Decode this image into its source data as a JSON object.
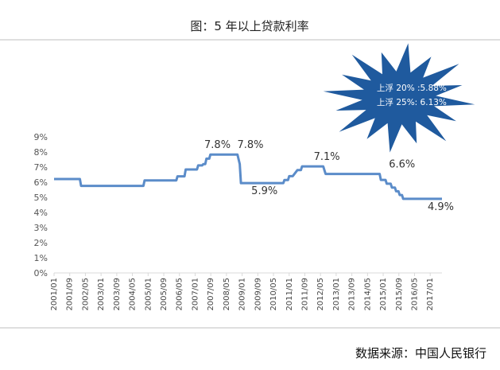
{
  "title": "图：5 年以上贷款利率",
  "source": "数据来源：中国人民银行",
  "colors": {
    "line": "#5B8CC9",
    "burst": "#1F5A9E",
    "rule": "#BFBFBF",
    "axis": "#D9D9D9"
  },
  "callout": {
    "line1": "上浮 20% :5.88%",
    "line2": "上浮 25%: 6.13%"
  },
  "chart_data": {
    "type": "line",
    "title": "图：5 年以上贷款利率",
    "ylim": [
      0,
      9
    ],
    "ytick_values": [
      0,
      1,
      2,
      3,
      4,
      5,
      6,
      7,
      8,
      9
    ],
    "ytick_labels": [
      "0%",
      "1%",
      "2%",
      "3%",
      "4%",
      "5%",
      "6%",
      "7%",
      "8%",
      "9%"
    ],
    "xlim": [
      2001.0,
      2017.5
    ],
    "xtick_values": [
      2001.0,
      2001.667,
      2002.333,
      2003.0,
      2003.667,
      2004.333,
      2005.0,
      2005.667,
      2006.333,
      2007.0,
      2007.667,
      2008.333,
      2009.0,
      2009.667,
      2010.333,
      2011.0,
      2011.667,
      2012.333,
      2013.0,
      2013.667,
      2014.333,
      2015.0,
      2015.667,
      2016.333,
      2017.0
    ],
    "xtick_labels": [
      "2001/01",
      "2001/09",
      "2002/05",
      "2003/01",
      "2003/09",
      "2004/05",
      "2005/01",
      "2005/09",
      "2006/05",
      "2007/01",
      "2007/09",
      "2008/05",
      "2009/01",
      "2009/09",
      "2010/05",
      "2011/01",
      "2011/09",
      "2012/05",
      "2013/01",
      "2013/09",
      "2014/05",
      "2015/01",
      "2015/09",
      "2016/05",
      "2017/01"
    ],
    "grid": false,
    "series": [
      {
        "x": [
          2001.0,
          2002.1,
          2002.15,
          2004.8,
          2004.85,
          2006.2,
          2006.25,
          2006.55,
          2006.6,
          2007.08,
          2007.13,
          2007.3,
          2007.35,
          2007.43,
          2007.48,
          2007.6,
          2007.65,
          2008.8,
          2008.9,
          2008.95,
          2010.75,
          2010.8,
          2010.95,
          2011.0,
          2011.15,
          2011.25,
          2011.35,
          2011.5,
          2011.55,
          2012.45,
          2012.5,
          2012.55,
          2014.85,
          2014.9,
          2015.1,
          2015.15,
          2015.32,
          2015.37,
          2015.5,
          2015.55,
          2015.65,
          2015.7,
          2015.8,
          2015.85,
          2017.5
        ],
        "values": [
          6.21,
          6.21,
          5.76,
          5.76,
          6.12,
          6.12,
          6.39,
          6.39,
          6.84,
          6.84,
          7.11,
          7.11,
          7.2,
          7.2,
          7.56,
          7.56,
          7.83,
          7.83,
          7.2,
          5.94,
          5.94,
          6.14,
          6.14,
          6.4,
          6.4,
          6.6,
          6.8,
          6.8,
          7.05,
          7.05,
          6.8,
          6.55,
          6.55,
          6.15,
          6.15,
          5.9,
          5.9,
          5.65,
          5.65,
          5.4,
          5.4,
          5.15,
          5.15,
          4.9,
          4.9
        ]
      }
    ],
    "data_labels": [
      {
        "text": "7.8%",
        "x": 2007.95,
        "y": 7.83
      },
      {
        "text": "7.8%",
        "x": 2009.35,
        "y": 7.83
      },
      {
        "text": "5.9%",
        "x": 2009.95,
        "y": 5.94
      },
      {
        "text": "7.1%",
        "x": 2012.6,
        "y": 7.05
      },
      {
        "text": "6.6%",
        "x": 2015.8,
        "y": 6.55
      },
      {
        "text": "4.9%",
        "x": 2017.45,
        "y": 4.9
      }
    ]
  }
}
